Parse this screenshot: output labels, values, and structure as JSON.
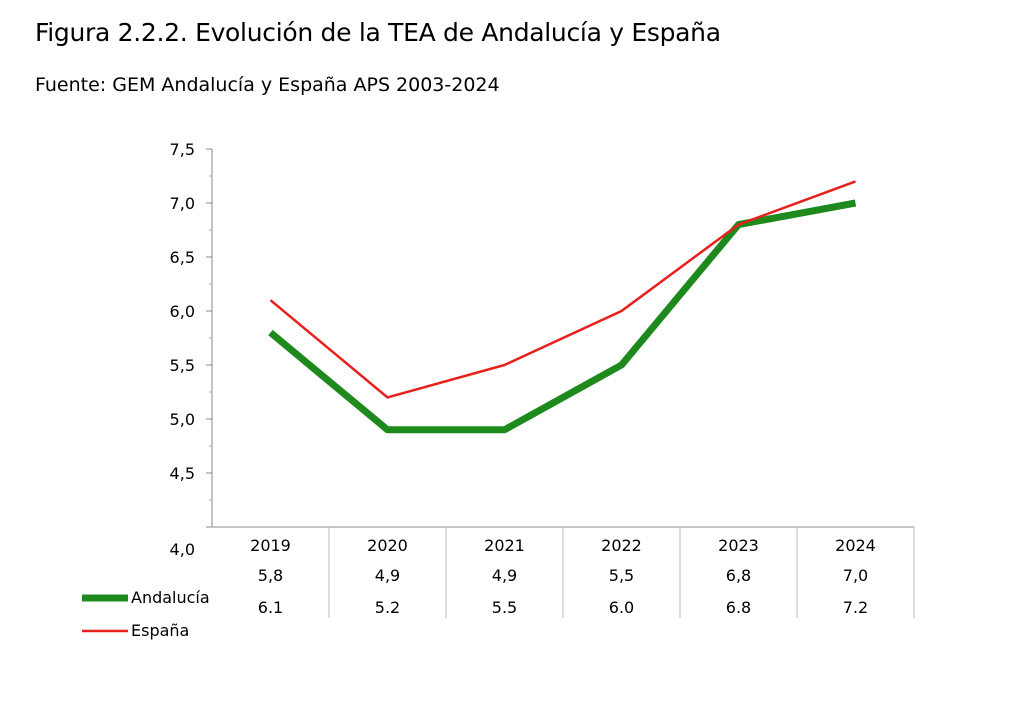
{
  "header": {
    "title": "Figura 2.2.2. Evolución de la TEA de Andalucía y España",
    "subtitle": "Fuente: GEM Andalucía y España APS 2003-2024"
  },
  "chart_data": {
    "type": "line",
    "categories": [
      "2019",
      "2020",
      "2021",
      "2022",
      "2023",
      "2024"
    ],
    "ylim": [
      4.0,
      7.5
    ],
    "yticks": [
      "4,0",
      "4,5",
      "5,0",
      "5,5",
      "6,0",
      "6,5",
      "7,0",
      "7,5"
    ],
    "grid": false,
    "legend": "bottom-left",
    "series": [
      {
        "name": "Andalucía",
        "color": "#1e8a1e",
        "values": [
          5.8,
          4.9,
          4.9,
          5.5,
          6.8,
          7.0
        ],
        "table_labels": [
          "5,8",
          "4,9",
          "4,9",
          "5,5",
          "6,8",
          "7,0"
        ]
      },
      {
        "name": "España",
        "color": "#e8201c",
        "values": [
          6.1,
          5.2,
          5.5,
          6.0,
          6.8,
          7.2
        ],
        "table_labels": [
          "6.1",
          "5.2",
          "5.5",
          "6.0",
          "6.8",
          "7.2"
        ]
      }
    ]
  }
}
